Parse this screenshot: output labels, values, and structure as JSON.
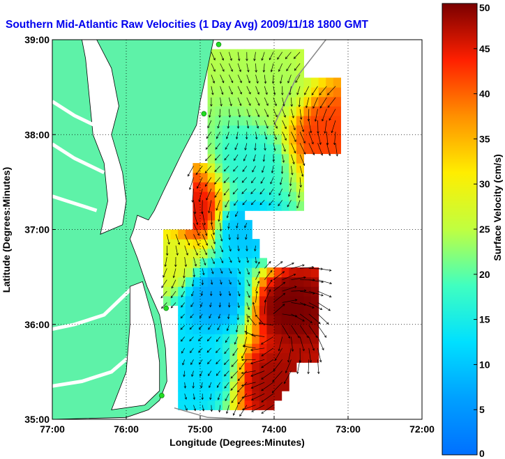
{
  "chart_data": {
    "type": "heatmap",
    "title": "Southern Mid-Atlantic Raw Velocities (1 Day Avg) 2009/11/18 1800 GMT",
    "xlabel": "Longitude (Degrees:Minutes)",
    "ylabel": "Latitude (Degrees:Minutes)",
    "xlim": [
      -77,
      -72
    ],
    "ylim": [
      35,
      39
    ],
    "x_ticks": [
      {
        "value": -77,
        "label": "77:00"
      },
      {
        "value": -76,
        "label": "76:00"
      },
      {
        "value": -75,
        "label": "75:00"
      },
      {
        "value": -74,
        "label": "74:00"
      },
      {
        "value": -73,
        "label": "73:00"
      },
      {
        "value": -72,
        "label": "72:00"
      }
    ],
    "y_ticks": [
      {
        "value": 35,
        "label": "35:00"
      },
      {
        "value": 36,
        "label": "36:00"
      },
      {
        "value": 37,
        "label": "37:00"
      },
      {
        "value": 38,
        "label": "38:00"
      },
      {
        "value": 39,
        "label": "39:00"
      }
    ],
    "grid": true,
    "colorbar": {
      "label": "Surface Velocity (cm/s)",
      "range": [
        0,
        50
      ],
      "ticks": [
        0,
        5,
        10,
        15,
        20,
        25,
        30,
        35,
        40,
        45,
        50
      ],
      "placement": "right"
    },
    "colors": {
      "land": "#5ef2a8",
      "water": "#ffffff",
      "arrows": "#000000",
      "stations": "#22dd22",
      "title": "#0000ee",
      "coastline_offshore": "#888888"
    },
    "stations": [
      {
        "lon": -74.75,
        "lat": 38.95
      },
      {
        "lon": -74.95,
        "lat": 38.22
      },
      {
        "lon": -75.46,
        "lat": 36.17
      },
      {
        "lon": -75.52,
        "lat": 35.25
      }
    ],
    "velocity_regions": [
      {
        "lon": -75.1,
        "lat": 37.2,
        "speed": 45
      },
      {
        "lon": -74.4,
        "lat": 37.0,
        "speed": 10
      },
      {
        "lon": -74.8,
        "lat": 36.3,
        "speed": 7
      },
      {
        "lon": -73.8,
        "lat": 36.2,
        "speed": 50
      },
      {
        "lon": -74.0,
        "lat": 35.4,
        "speed": 48
      },
      {
        "lon": -73.3,
        "lat": 38.0,
        "speed": 42
      },
      {
        "lon": -74.0,
        "lat": 38.5,
        "speed": 24
      },
      {
        "lon": -74.3,
        "lat": 37.7,
        "speed": 17
      },
      {
        "lon": -75.4,
        "lat": 36.7,
        "speed": 28
      },
      {
        "lon": -75.0,
        "lat": 35.5,
        "speed": 12
      }
    ]
  }
}
